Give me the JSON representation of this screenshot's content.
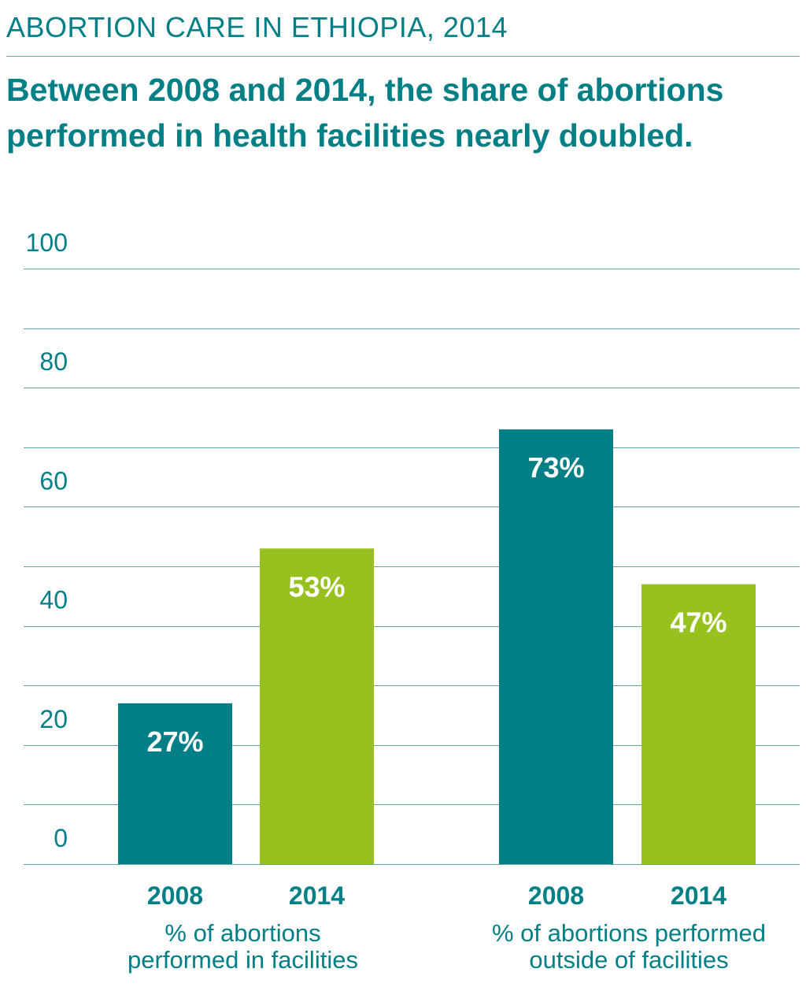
{
  "header": {
    "kicker": "ABORTION CARE IN ETHIOPIA, 2014",
    "headline": "Between 2008 and 2014, the share of abortions performed in health facilities nearly doubled."
  },
  "colors": {
    "teal": "#007f86",
    "green": "#97c11f",
    "gridline": "#5fa3a7"
  },
  "chart_data": {
    "type": "bar",
    "ylim": [
      0,
      100
    ],
    "yticks": [
      0,
      20,
      40,
      60,
      80,
      100
    ],
    "grid": true,
    "groups": [
      {
        "label": "% of abortions\nperformed in facilities",
        "bars": [
          {
            "year": "2008",
            "value": 27,
            "label": "27%",
            "color": "#007f86"
          },
          {
            "year": "2014",
            "value": 53,
            "label": "53%",
            "color": "#97c11f"
          }
        ]
      },
      {
        "label": "% of abortions performed\noutside of facilities",
        "bars": [
          {
            "year": "2008",
            "value": 73,
            "label": "73%",
            "color": "#007f86"
          },
          {
            "year": "2014",
            "value": 47,
            "label": "47%",
            "color": "#97c11f"
          }
        ]
      }
    ]
  }
}
